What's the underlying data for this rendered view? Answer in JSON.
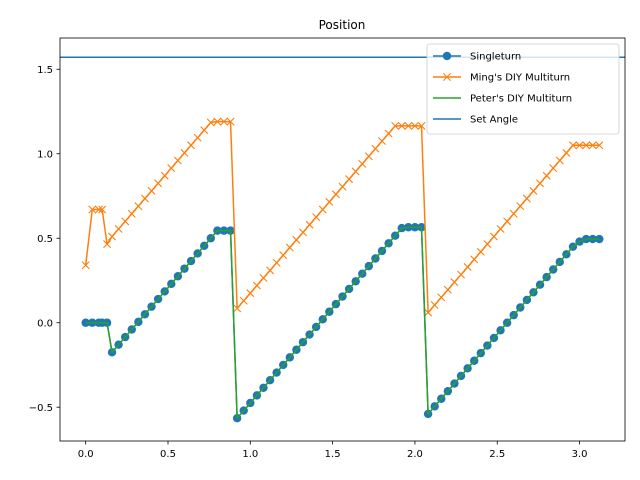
{
  "chart_data": {
    "type": "line",
    "title": "Position",
    "xlabel": "",
    "ylabel": "",
    "xlim": [
      -0.156,
      3.276
    ],
    "ylim": [
      -0.7,
      1.685
    ],
    "xticks": [
      0.0,
      0.5,
      1.0,
      1.5,
      2.0,
      2.5,
      3.0
    ],
    "xtick_labels": [
      "0.0",
      "0.5",
      "1.0",
      "1.5",
      "2.0",
      "2.5",
      "3.0"
    ],
    "yticks": [
      -0.5,
      0.0,
      0.5,
      1.0,
      1.5
    ],
    "ytick_labels": [
      "−0.5",
      "0.0",
      "0.5",
      "1.0",
      "1.5"
    ],
    "grid": false,
    "legend_position": "top-right",
    "x": [
      0.0,
      0.04,
      0.08,
      0.1,
      0.13,
      0.16,
      0.2,
      0.24,
      0.28,
      0.32,
      0.36,
      0.4,
      0.44,
      0.48,
      0.52,
      0.56,
      0.6,
      0.64,
      0.68,
      0.72,
      0.76,
      0.8,
      0.84,
      0.88,
      0.92,
      0.96,
      1.0,
      1.04,
      1.08,
      1.12,
      1.16,
      1.2,
      1.24,
      1.28,
      1.32,
      1.36,
      1.4,
      1.44,
      1.48,
      1.52,
      1.56,
      1.6,
      1.64,
      1.68,
      1.72,
      1.76,
      1.8,
      1.84,
      1.88,
      1.92,
      1.96,
      2.0,
      2.04,
      2.08,
      2.12,
      2.16,
      2.2,
      2.24,
      2.28,
      2.32,
      2.36,
      2.4,
      2.44,
      2.48,
      2.52,
      2.56,
      2.6,
      2.64,
      2.68,
      2.72,
      2.76,
      2.8,
      2.84,
      2.88,
      2.92,
      2.96,
      3.0,
      3.04,
      3.08,
      3.12
    ],
    "series": [
      {
        "name": "Singleturn",
        "color": "#1f77b4",
        "marker": "circle",
        "values": [
          0.0,
          0.0,
          0.0,
          0.0,
          0.0,
          -0.175,
          -0.13,
          -0.085,
          -0.04,
          0.005,
          0.05,
          0.095,
          0.14,
          0.185,
          0.23,
          0.275,
          0.32,
          0.365,
          0.41,
          0.455,
          0.5,
          0.545,
          0.545,
          0.545,
          -0.565,
          -0.52,
          -0.475,
          -0.43,
          -0.385,
          -0.34,
          -0.295,
          -0.25,
          -0.205,
          -0.16,
          -0.115,
          -0.07,
          -0.025,
          0.02,
          0.065,
          0.11,
          0.155,
          0.2,
          0.245,
          0.29,
          0.335,
          0.38,
          0.425,
          0.47,
          0.515,
          0.56,
          0.565,
          0.565,
          0.565,
          -0.54,
          -0.495,
          -0.45,
          -0.405,
          -0.36,
          -0.315,
          -0.27,
          -0.225,
          -0.18,
          -0.135,
          -0.09,
          -0.045,
          0.0,
          0.045,
          0.09,
          0.135,
          0.18,
          0.225,
          0.27,
          0.315,
          0.36,
          0.405,
          0.45,
          0.48,
          0.495,
          0.495,
          0.495
        ]
      },
      {
        "name": "Ming's DIY Multiturn",
        "color": "#ff7f0e",
        "marker": "x",
        "values": [
          0.34,
          0.67,
          0.67,
          0.67,
          0.465,
          0.51,
          0.555,
          0.6,
          0.645,
          0.69,
          0.735,
          0.78,
          0.825,
          0.87,
          0.915,
          0.96,
          1.005,
          1.05,
          1.095,
          1.14,
          1.185,
          1.19,
          1.19,
          1.19,
          0.085,
          0.13,
          0.175,
          0.22,
          0.265,
          0.31,
          0.355,
          0.4,
          0.445,
          0.49,
          0.535,
          0.58,
          0.625,
          0.67,
          0.715,
          0.76,
          0.805,
          0.85,
          0.895,
          0.94,
          0.985,
          1.03,
          1.075,
          1.12,
          1.165,
          1.165,
          1.165,
          1.165,
          1.165,
          0.06,
          0.105,
          0.15,
          0.195,
          0.24,
          0.285,
          0.33,
          0.375,
          0.42,
          0.465,
          0.51,
          0.555,
          0.6,
          0.645,
          0.69,
          0.735,
          0.78,
          0.825,
          0.87,
          0.915,
          0.96,
          1.005,
          1.05,
          1.05,
          1.05,
          1.05,
          1.05
        ]
      },
      {
        "name": "Peter's DIY Multiturn",
        "color": "#2ca02c",
        "marker": "none",
        "values": [
          0.0,
          0.0,
          0.0,
          0.0,
          0.0,
          -0.175,
          -0.13,
          -0.085,
          -0.04,
          0.005,
          0.05,
          0.095,
          0.14,
          0.185,
          0.23,
          0.275,
          0.32,
          0.365,
          0.41,
          0.455,
          0.5,
          0.545,
          0.545,
          0.545,
          -0.565,
          -0.52,
          -0.475,
          -0.43,
          -0.385,
          -0.34,
          -0.295,
          -0.25,
          -0.205,
          -0.16,
          -0.115,
          -0.07,
          -0.025,
          0.02,
          0.065,
          0.11,
          0.155,
          0.2,
          0.245,
          0.29,
          0.335,
          0.38,
          0.425,
          0.47,
          0.515,
          0.56,
          0.565,
          0.565,
          0.565,
          -0.54,
          -0.495,
          -0.45,
          -0.405,
          -0.36,
          -0.315,
          -0.27,
          -0.225,
          -0.18,
          -0.135,
          -0.09,
          -0.045,
          0.0,
          0.045,
          0.09,
          0.135,
          0.18,
          0.225,
          0.27,
          0.315,
          0.36,
          0.405,
          0.45,
          0.48,
          0.495,
          0.495,
          0.495
        ]
      }
    ],
    "hlines": [
      {
        "name": "Set Angle",
        "color": "#1f77b4",
        "y": 1.5708
      }
    ]
  }
}
